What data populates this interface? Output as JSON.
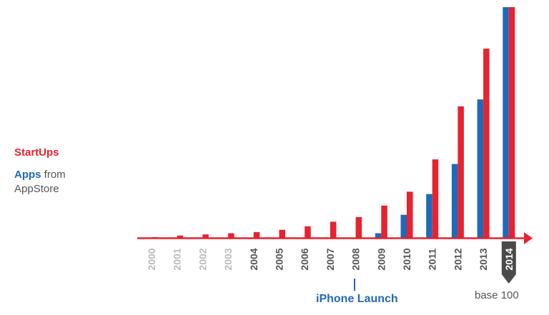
{
  "legend": {
    "startups_label": "StartUps",
    "apps_bold": "Apps",
    "apps_rest": " from",
    "apps_line2": "AppStore"
  },
  "annotation": "iPhone Launch",
  "footnote": "base 100",
  "colors": {
    "startups": "#e8222e",
    "apps": "#1f6ab8",
    "axis": "#e8222e",
    "tick_text": "#555555",
    "tick_faded": "#bbbbbb",
    "highlight_tag": "#4a4a4a"
  },
  "chart_data": {
    "type": "bar",
    "categories": [
      "2000",
      "2001",
      "2002",
      "2003",
      "2004",
      "2005",
      "2006",
      "2007",
      "2008",
      "2009",
      "2010",
      "2011",
      "2012",
      "2013",
      "2014"
    ],
    "series": [
      {
        "name": "StartUps",
        "values": [
          0.3,
          1,
          1.5,
          2,
          2.5,
          3.5,
          5,
          7,
          9,
          14,
          20,
          34,
          57,
          82,
          100
        ]
      },
      {
        "name": "Apps from AppStore",
        "values": [
          0,
          0,
          0,
          0,
          0,
          0,
          0,
          0,
          0,
          2,
          10,
          19,
          32,
          60,
          100
        ]
      }
    ],
    "ylim": [
      0,
      100
    ],
    "grid": false,
    "highlight_category": "2014",
    "legend_position": "left"
  }
}
